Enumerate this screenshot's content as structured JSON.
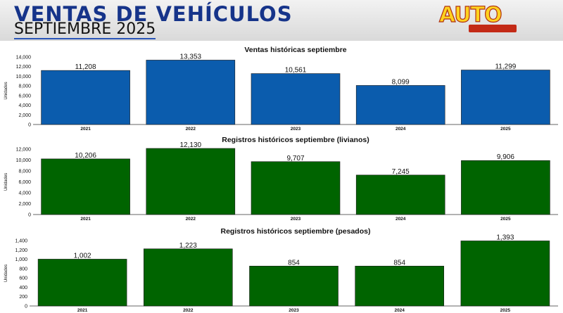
{
  "header": {
    "title": "VENTAS DE VEHÍCULOS",
    "subtitle": "SEPTIEMBRE 2025",
    "logo_text": "AUTO"
  },
  "colors": {
    "blue": "#0b5cad",
    "green": "#006400",
    "title_blue": "#16348a"
  },
  "chart_data": [
    {
      "type": "bar",
      "title": "Ventas históricas septiembre",
      "ylabel": "Unidades",
      "categories": [
        "2021",
        "2022",
        "2023",
        "2024",
        "2025"
      ],
      "values": [
        11208,
        13353,
        10561,
        8099,
        11299
      ],
      "value_labels": [
        "11,208",
        "13,353",
        "10,561",
        "8,099",
        "11,299"
      ],
      "ylim": [
        0,
        14000
      ],
      "yticks": [
        0,
        2000,
        4000,
        6000,
        8000,
        10000,
        12000,
        14000
      ],
      "ytick_labels": [
        "0",
        "2,000",
        "4,000",
        "6,000",
        "8,000",
        "10,000",
        "12,000",
        "14,000"
      ],
      "color": "#0b5cad",
      "grid": false
    },
    {
      "type": "bar",
      "title": "Registros históricos septiembre (livianos)",
      "ylabel": "Unidades",
      "categories": [
        "2021",
        "2022",
        "2023",
        "2024",
        "2025"
      ],
      "values": [
        10206,
        12130,
        9707,
        7245,
        9906
      ],
      "value_labels": [
        "10,206",
        "12,130",
        "9,707",
        "7,245",
        "9,906"
      ],
      "ylim": [
        0,
        12000
      ],
      "yticks": [
        0,
        2000,
        4000,
        6000,
        8000,
        10000,
        12000
      ],
      "ytick_labels": [
        "0",
        "2,000",
        "4,000",
        "6,000",
        "8,000",
        "10,000",
        "12,000"
      ],
      "color": "#006400",
      "grid": false
    },
    {
      "type": "bar",
      "title": "Registros históricos septiembre (pesados)",
      "ylabel": "Unidades",
      "categories": [
        "2021",
        "2022",
        "2023",
        "2024",
        "2025"
      ],
      "values": [
        1002,
        1223,
        854,
        854,
        1393
      ],
      "value_labels": [
        "1,002",
        "1,223",
        "854",
        "854",
        "1,393"
      ],
      "ylim": [
        0,
        1400
      ],
      "yticks": [
        0,
        200,
        400,
        600,
        800,
        1000,
        1200,
        1400
      ],
      "ytick_labels": [
        "0",
        "200",
        "400",
        "600",
        "800",
        "1,000",
        "1,200",
        "1,400"
      ],
      "color": "#006400",
      "grid": false
    }
  ]
}
